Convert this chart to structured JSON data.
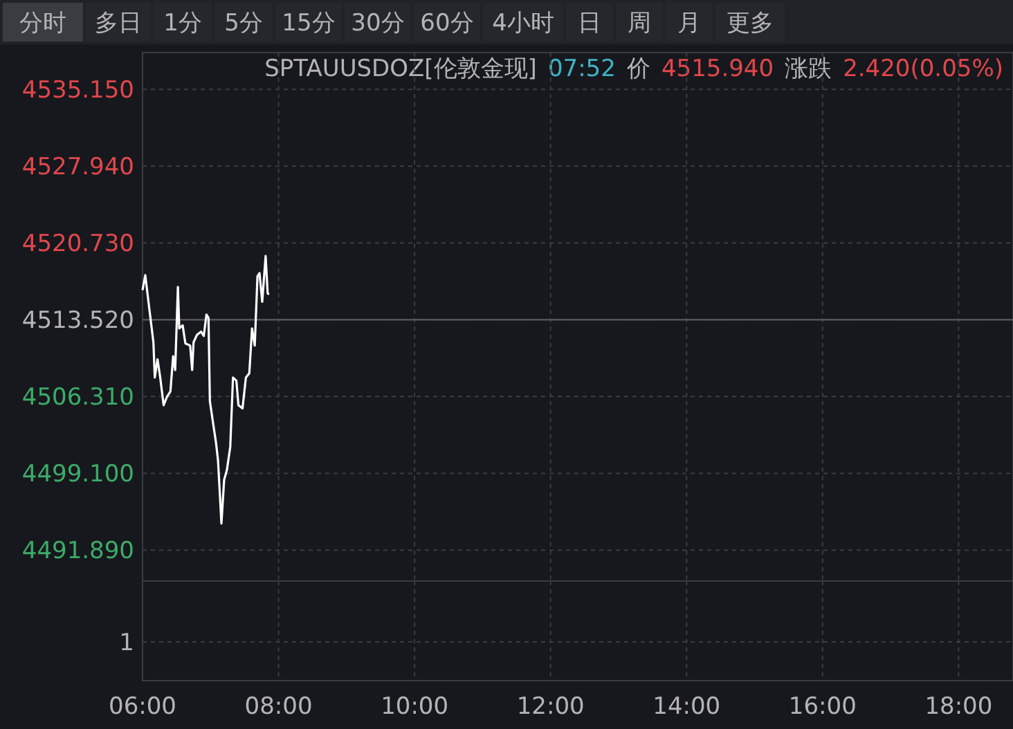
{
  "chart_data": {
    "type": "line",
    "title": "SPTAUUSDOZ[伦敦金现]",
    "subtitle": "07:52 价 4515.940 涨跌 2.420(0.05%)",
    "annotations": [
      "分时",
      "多日",
      "1分",
      "5分",
      "15分",
      "30分",
      "60分",
      "4小时",
      "日",
      "周",
      "月",
      "更多",
      "1"
    ],
    "x": [
      6.0,
      6.04,
      6.11,
      6.16,
      6.18,
      6.22,
      6.26,
      6.31,
      6.36,
      6.41,
      6.45,
      6.48,
      6.52,
      6.54,
      6.59,
      6.63,
      6.7,
      6.73,
      6.75,
      6.8,
      6.86,
      6.9,
      6.94,
      6.97,
      6.99,
      7.04,
      7.08,
      7.11,
      7.14,
      7.16,
      7.2,
      7.24,
      7.29,
      7.33,
      7.38,
      7.41,
      7.47,
      7.52,
      7.57,
      7.61,
      7.65,
      7.69,
      7.72,
      7.76,
      7.81,
      7.84,
      7.86
    ],
    "series": [
      {
        "color": "#ffffff",
        "values": [
          4516.3,
          4517.7,
          4514.0,
          4511.4,
          4508.1,
          4509.8,
          4508.1,
          4505.5,
          4506.3,
          4506.8,
          4510.1,
          4508.8,
          4516.6,
          4512.7,
          4513.0,
          4511.3,
          4511.1,
          4508.8,
          4511.4,
          4512.1,
          4512.4,
          4512.0,
          4514.0,
          4513.7,
          4505.9,
          4503.7,
          4502.0,
          4500.3,
          4496.8,
          4494.4,
          4498.5,
          4499.4,
          4501.6,
          4508.1,
          4507.8,
          4505.5,
          4505.2,
          4508.1,
          4508.5,
          4512.7,
          4511.1,
          4517.6,
          4517.9,
          4515.2,
          4519.5,
          4516.0,
          4515.9
        ]
      }
    ],
    "xlim": [
      6,
      18.8
    ],
    "xticks": [
      {
        "value": 6,
        "label": "06:00"
      },
      {
        "value": 8,
        "label": "08:00"
      },
      {
        "value": 10,
        "label": "10:00"
      },
      {
        "value": 12,
        "label": "12:00"
      },
      {
        "value": 14,
        "label": "14:00"
      },
      {
        "value": 16,
        "label": "16:00"
      },
      {
        "value": 18,
        "label": "18:00"
      }
    ],
    "ylim": [
      4489.0,
      4538.6
    ],
    "yticks": [
      {
        "value": 4491.89,
        "label": "4491.890"
      },
      {
        "value": 4499.1,
        "label": "4499.100"
      },
      {
        "value": 4506.31,
        "label": "4506.310"
      },
      {
        "value": 4513.52,
        "label": "4513.520"
      },
      {
        "value": 4520.73,
        "label": "4520.730"
      },
      {
        "value": 4527.94,
        "label": "4527.940"
      },
      {
        "value": 4535.15,
        "label": "4535.150"
      }
    ],
    "ref_lines": [
      {
        "axis": "y",
        "value": 4513.52,
        "color": "#555555"
      }
    ],
    "grid": true
  }
}
